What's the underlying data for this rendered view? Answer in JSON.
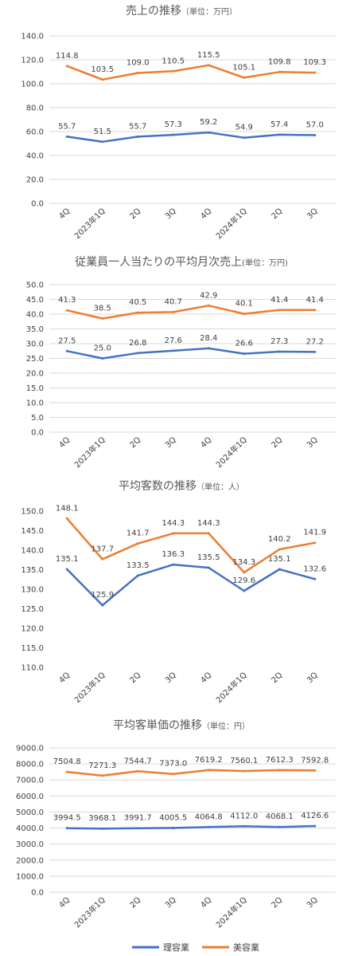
{
  "colors": {
    "barber": "#4472C4",
    "beauty": "#ED7D31",
    "grid": "#D9D9D9",
    "text": "#404040",
    "title": "#595959"
  },
  "legend": {
    "barber": "理容業",
    "beauty": "美容業"
  },
  "chart_data": [
    {
      "type": "line",
      "title": "売上の推移",
      "unit": "（単位：万円）",
      "categories": [
        "4Q",
        "2023年1Q",
        "2Q",
        "3Q",
        "4Q",
        "2024年1Q",
        "2Q",
        "3Q"
      ],
      "ylim": [
        0,
        140
      ],
      "yticks": [
        "0.0",
        "20.0",
        "40.0",
        "60.0",
        "80.0",
        "100.0",
        "120.0",
        "140.0"
      ],
      "grid": true,
      "legend": "bottom",
      "series": [
        {
          "name": "理容業",
          "values": [
            55.7,
            51.5,
            55.7,
            57.3,
            59.2,
            54.9,
            57.4,
            57.0
          ],
          "labels": [
            "55.7",
            "51.5",
            "55.7",
            "57.3",
            "59.2",
            "54.9",
            "57.4",
            "57.0"
          ]
        },
        {
          "name": "美容業",
          "values": [
            114.8,
            103.5,
            109.0,
            110.5,
            115.5,
            105.1,
            109.8,
            109.3
          ],
          "labels": [
            "114.8",
            "103.5",
            "109.0",
            "110.5",
            "115.5",
            "105.1",
            "109.8",
            "109.3"
          ]
        }
      ]
    },
    {
      "type": "line",
      "title": "従業員一人当たりの平均月次売上",
      "unit": "(単位：万円)",
      "categories": [
        "4Q",
        "2023年1Q",
        "2Q",
        "3Q",
        "4Q",
        "2024年1Q",
        "2Q",
        "3Q"
      ],
      "ylim": [
        0,
        50
      ],
      "yticks": [
        "0.0",
        "5.0",
        "10.0",
        "15.0",
        "20.0",
        "25.0",
        "30.0",
        "35.0",
        "40.0",
        "45.0",
        "50.0"
      ],
      "grid": true,
      "legend": "bottom",
      "series": [
        {
          "name": "理容業",
          "values": [
            27.5,
            25.0,
            26.8,
            27.6,
            28.4,
            26.6,
            27.3,
            27.2
          ],
          "labels": [
            "27.5",
            "25.0",
            "26.8",
            "27.6",
            "28.4",
            "26.6",
            "27.3",
            "27.2"
          ]
        },
        {
          "name": "美容業",
          "values": [
            41.3,
            38.5,
            40.5,
            40.7,
            42.9,
            40.1,
            41.4,
            41.4
          ],
          "labels": [
            "41.3",
            "38.5",
            "40.5",
            "40.7",
            "42.9",
            "40.1",
            "41.4",
            "41.4"
          ]
        }
      ]
    },
    {
      "type": "line",
      "title": "平均客数の推移",
      "unit": "（単位：人）",
      "categories": [
        "4Q",
        "2023年1Q",
        "2Q",
        "3Q",
        "4Q",
        "2024年1Q",
        "2Q",
        "3Q"
      ],
      "ylim": [
        110,
        150
      ],
      "yticks": [
        "110.0",
        "115.0",
        "120.0",
        "125.0",
        "130.0",
        "135.0",
        "140.0",
        "145.0",
        "150.0"
      ],
      "grid": false,
      "legend": "bottom",
      "series": [
        {
          "name": "理容業",
          "values": [
            135.1,
            125.9,
            133.5,
            136.3,
            135.5,
            129.6,
            135.1,
            132.6
          ],
          "labels": [
            "135.1",
            "125.9",
            "133.5",
            "136.3",
            "135.5",
            "129.6",
            "135.1",
            "132.6"
          ]
        },
        {
          "name": "美容業",
          "values": [
            148.1,
            137.7,
            141.7,
            144.3,
            144.3,
            134.3,
            140.2,
            141.9
          ],
          "labels": [
            "148.1",
            "137.7",
            "141.7",
            "144.3",
            "144.3",
            "134.3",
            "140.2",
            "141.9"
          ]
        }
      ]
    },
    {
      "type": "line",
      "title": "平均客単価の推移",
      "unit": "（単位：円）",
      "categories": [
        "4Q",
        "2023年1Q",
        "2Q",
        "3Q",
        "4Q",
        "2024年1Q",
        "2Q",
        "3Q"
      ],
      "ylim": [
        0,
        9000
      ],
      "yticks": [
        "0.0",
        "1000.0",
        "2000.0",
        "3000.0",
        "4000.0",
        "5000.0",
        "6000.0",
        "7000.0",
        "8000.0",
        "9000.0"
      ],
      "grid": true,
      "legend": "bottom",
      "series": [
        {
          "name": "理容業",
          "values": [
            3994.5,
            3968.1,
            3991.7,
            4005.5,
            4064.8,
            4112.0,
            4068.1,
            4126.6
          ],
          "labels": [
            "3994.5",
            "3968.1",
            "3991.7",
            "4005.5",
            "4064.8",
            "4112.0",
            "4068.1",
            "4126.6"
          ]
        },
        {
          "name": "美容業",
          "values": [
            7504.8,
            7271.3,
            7544.7,
            7373.0,
            7619.2,
            7560.1,
            7612.3,
            7592.8
          ],
          "labels": [
            "7504.8",
            "7271.3",
            "7544.7",
            "7373.0",
            "7619.2",
            "7560.1",
            "7612.3",
            "7592.8"
          ]
        }
      ]
    }
  ]
}
